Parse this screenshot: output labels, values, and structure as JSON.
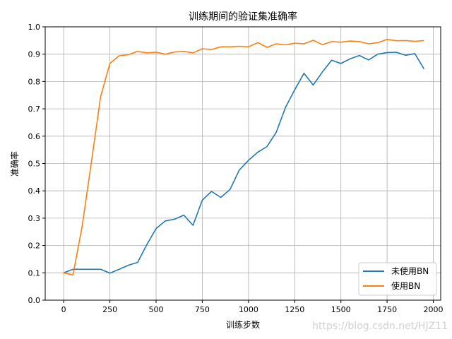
{
  "chart_data": {
    "type": "line",
    "title": "训练期间的验证集准确率",
    "xlabel": "训练步数",
    "ylabel": "准确率",
    "xlim": [
      -100,
      2040
    ],
    "ylim": [
      0.0,
      1.0
    ],
    "x_ticks": [
      0,
      250,
      500,
      750,
      1000,
      1250,
      1500,
      1750,
      2000
    ],
    "y_ticks": [
      0.0,
      0.1,
      0.2,
      0.3,
      0.4,
      0.5,
      0.6,
      0.7,
      0.8,
      0.9,
      1.0
    ],
    "grid": true,
    "legend_position": "lower-right",
    "x": [
      0,
      50,
      100,
      150,
      200,
      250,
      300,
      350,
      400,
      450,
      500,
      550,
      600,
      650,
      700,
      750,
      800,
      850,
      900,
      950,
      1000,
      1050,
      1100,
      1150,
      1200,
      1250,
      1300,
      1350,
      1400,
      1450,
      1500,
      1550,
      1600,
      1650,
      1700,
      1750,
      1800,
      1850,
      1900,
      1950
    ],
    "series": [
      {
        "name": "未使用BN",
        "color": "#1f77b4",
        "values": [
          0.1,
          0.113,
          0.113,
          0.113,
          0.113,
          0.099,
          0.113,
          0.128,
          0.138,
          0.203,
          0.262,
          0.29,
          0.296,
          0.311,
          0.274,
          0.366,
          0.398,
          0.376,
          0.405,
          0.476,
          0.512,
          0.541,
          0.562,
          0.614,
          0.705,
          0.77,
          0.83,
          0.787,
          0.835,
          0.878,
          0.866,
          0.883,
          0.895,
          0.879,
          0.9,
          0.906,
          0.907,
          0.896,
          0.902,
          0.846
        ]
      },
      {
        "name": "使用BN",
        "color": "#ff7f0e",
        "values": [
          0.1,
          0.092,
          0.27,
          0.505,
          0.745,
          0.866,
          0.894,
          0.898,
          0.91,
          0.905,
          0.907,
          0.9,
          0.908,
          0.91,
          0.905,
          0.92,
          0.917,
          0.927,
          0.927,
          0.929,
          0.927,
          0.942,
          0.925,
          0.938,
          0.934,
          0.94,
          0.938,
          0.951,
          0.935,
          0.946,
          0.944,
          0.948,
          0.946,
          0.938,
          0.942,
          0.954,
          0.949,
          0.95,
          0.947,
          0.95
        ]
      }
    ]
  },
  "watermark": "https://blog.csdn.net/HJZ11"
}
